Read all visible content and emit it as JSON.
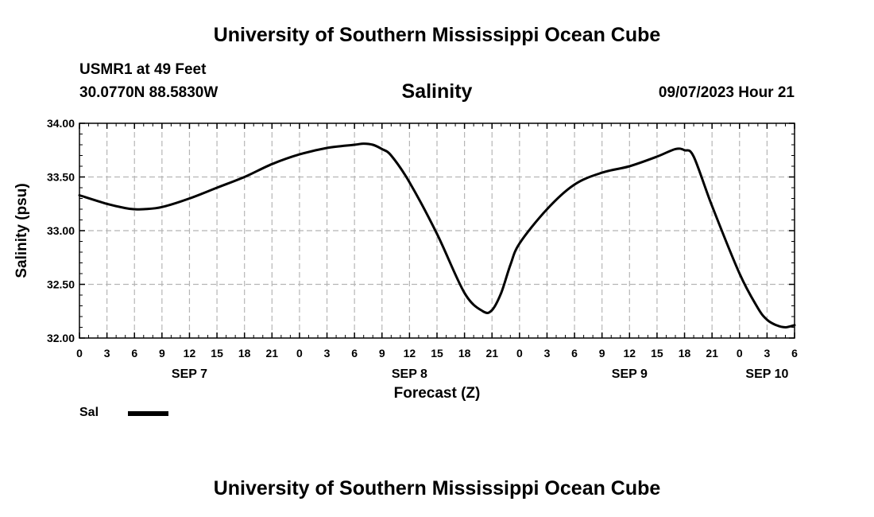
{
  "header": {
    "org_title": "University of Southern Mississippi Ocean Cube",
    "station": "USMR1 at 49 Feet",
    "coords": "30.0770N  88.5830W",
    "datetime": "09/07/2023 Hour 21",
    "footer_title": "University of Southern Mississippi Ocean Cube"
  },
  "chart_data": {
    "type": "line",
    "title": "Salinity",
    "xlabel": "Forecast (Z)",
    "ylabel": "Salinity (psu)",
    "xlim": [
      0,
      78
    ],
    "ylim": [
      32.0,
      34.0
    ],
    "y_ticks": [
      "32.00",
      "32.50",
      "33.00",
      "33.50",
      "34.00"
    ],
    "y_tick_values": [
      32.0,
      32.5,
      33.0,
      33.5,
      34.0
    ],
    "x_ticks": [
      "0",
      "3",
      "6",
      "9",
      "12",
      "15",
      "18",
      "21",
      "0",
      "3",
      "6",
      "9",
      "12",
      "15",
      "18",
      "21",
      "0",
      "3",
      "6",
      "9",
      "12",
      "15",
      "18",
      "21",
      "0",
      "3",
      "6"
    ],
    "day_labels": [
      {
        "label": "SEP 7",
        "hour": 12
      },
      {
        "label": "SEP 8",
        "hour": 36
      },
      {
        "label": "SEP 9",
        "hour": 60
      },
      {
        "label": "SEP 10",
        "hour": 75
      }
    ],
    "grid": true,
    "line_color": "#000000",
    "series": [
      {
        "name": "Sal",
        "x": [
          0,
          3,
          5,
          6,
          7,
          9,
          12,
          15,
          18,
          21,
          24,
          27,
          30,
          31,
          32,
          33,
          34,
          36,
          39,
          42,
          44,
          45,
          46,
          47,
          48,
          51,
          54,
          57,
          60,
          63,
          65,
          66,
          67,
          69,
          72,
          74,
          75,
          76,
          77,
          78
        ],
        "y": [
          33.33,
          33.25,
          33.21,
          33.2,
          33.2,
          33.22,
          33.3,
          33.4,
          33.5,
          33.62,
          33.71,
          33.77,
          33.8,
          33.81,
          33.8,
          33.76,
          33.7,
          33.45,
          32.97,
          32.42,
          32.25,
          32.26,
          32.42,
          32.68,
          32.88,
          33.2,
          33.43,
          33.54,
          33.6,
          33.69,
          33.76,
          33.75,
          33.69,
          33.23,
          32.6,
          32.28,
          32.17,
          32.12,
          32.1,
          32.12
        ]
      }
    ],
    "legend": [
      {
        "label": "Sal",
        "color": "#000000"
      }
    ]
  }
}
